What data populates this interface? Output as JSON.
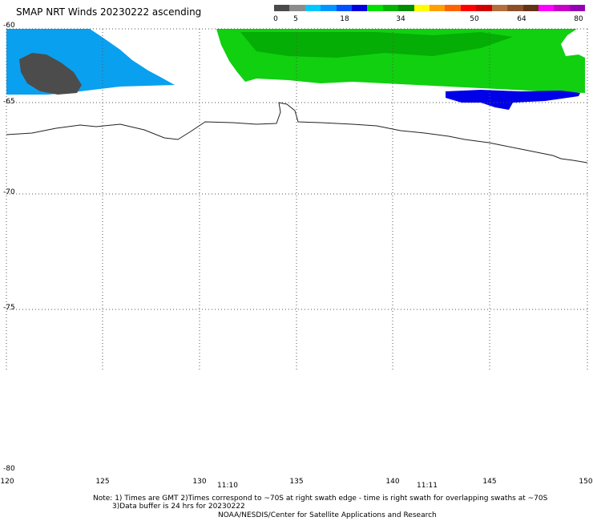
{
  "title": "SMAP NRT Winds 20230222 ascending",
  "scale": {
    "labels": [
      "0",
      "5",
      "18",
      "34",
      "50",
      "64",
      "80"
    ],
    "colors": [
      "#4a4a4a",
      "#8c8c8c",
      "#00c8ff",
      "#0096ff",
      "#0050ff",
      "#0000e0",
      "#00e000",
      "#00b400",
      "#008c00",
      "#ffff00",
      "#ffa000",
      "#ff6400",
      "#ff0000",
      "#d00000",
      "#b46e3c",
      "#8c5028",
      "#643214",
      "#ff00ff",
      "#c800c8",
      "#9600b4"
    ]
  },
  "axes": {
    "lat_labels": [
      "-60",
      "-65",
      "-70",
      "-75",
      "-80"
    ],
    "lon_labels": [
      "120",
      "125",
      "130",
      "135",
      "140",
      "145",
      "150"
    ]
  },
  "times": [
    "11:10",
    "11:11"
  ],
  "notes": {
    "line1": "Note: 1) Times are GMT 2)Times correspond to ~70S at right swath edge - time is right swath for overlapping swaths at ~70S",
    "line2": "3)Data buffer is 24 hrs for 20230222",
    "line3": "NOAA/NESDIS/Center for Satellite Applications and Research"
  }
}
